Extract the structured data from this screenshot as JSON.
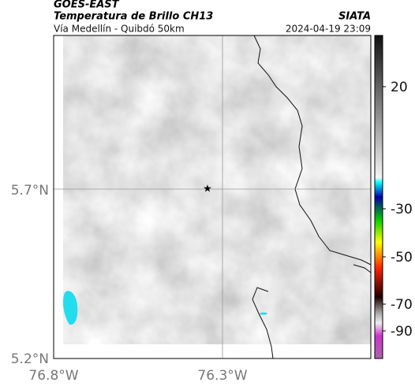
{
  "header": {
    "source": "GOES-EAST",
    "product": "Temperatura de Brillo CH13",
    "region": "Vía Medellín - Quibdó 50km",
    "agency": "SIATA",
    "timestamp": "2024-04-19 23:09"
  },
  "map": {
    "x_labels": [
      "76.8°W",
      "76.3°W"
    ],
    "y_labels": [
      "5.7°N",
      "5.2°N"
    ]
  },
  "colorbar": {
    "ticks": [
      "20",
      "-30",
      "-50",
      "-70",
      "-90"
    ]
  }
}
